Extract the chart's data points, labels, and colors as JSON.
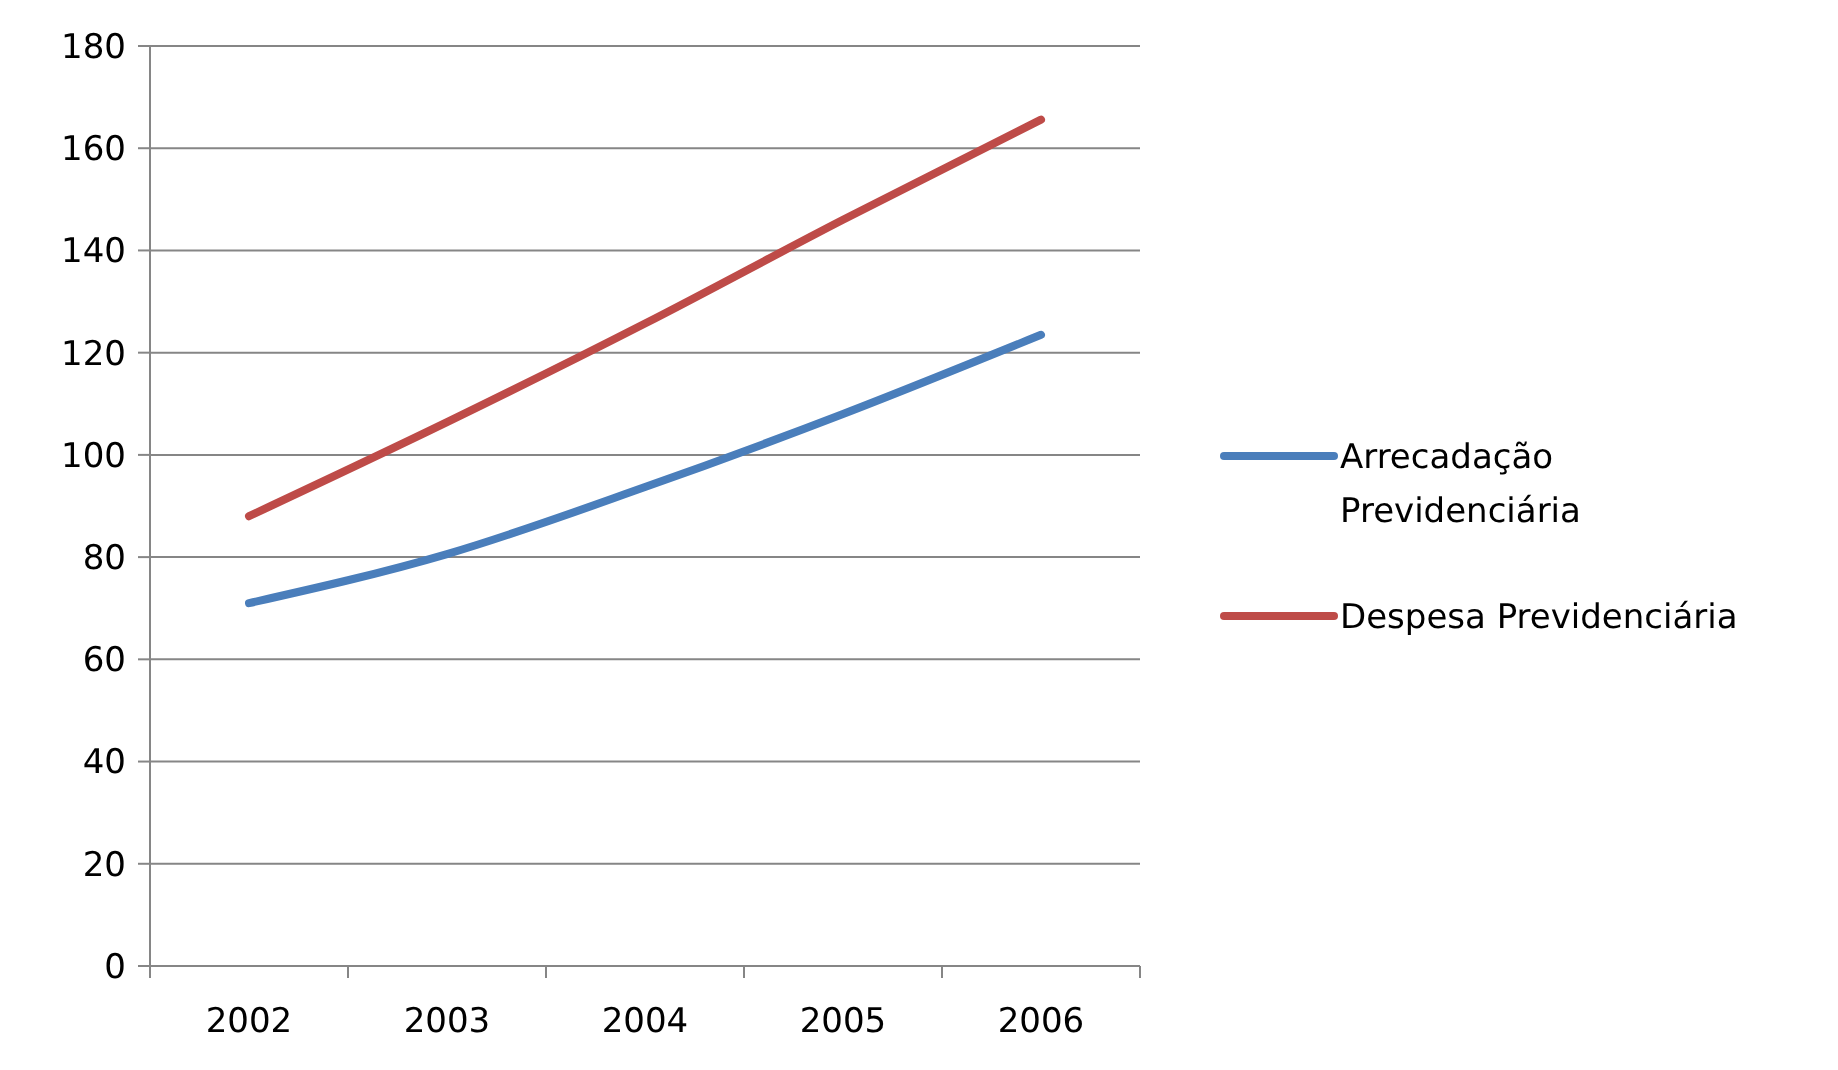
{
  "chart_data": {
    "type": "line",
    "categories": [
      "2002",
      "2003",
      "2004",
      "2005",
      "2006"
    ],
    "series": [
      {
        "name": "Arrecadação Previdenciária",
        "color": "#4a7ebb",
        "values": [
          71,
          80.6,
          93.7,
          108,
          123.5
        ]
      },
      {
        "name": "Despesa Previdenciária",
        "color": "#be4b48",
        "values": [
          88,
          106.4,
          125.7,
          146,
          165.6
        ]
      }
    ],
    "ylim": [
      0,
      180
    ],
    "yticks": [
      0,
      20,
      40,
      60,
      80,
      100,
      120,
      140,
      160,
      180
    ],
    "grid": "y",
    "legend": "right",
    "marker": "none",
    "line_style": "solid"
  }
}
